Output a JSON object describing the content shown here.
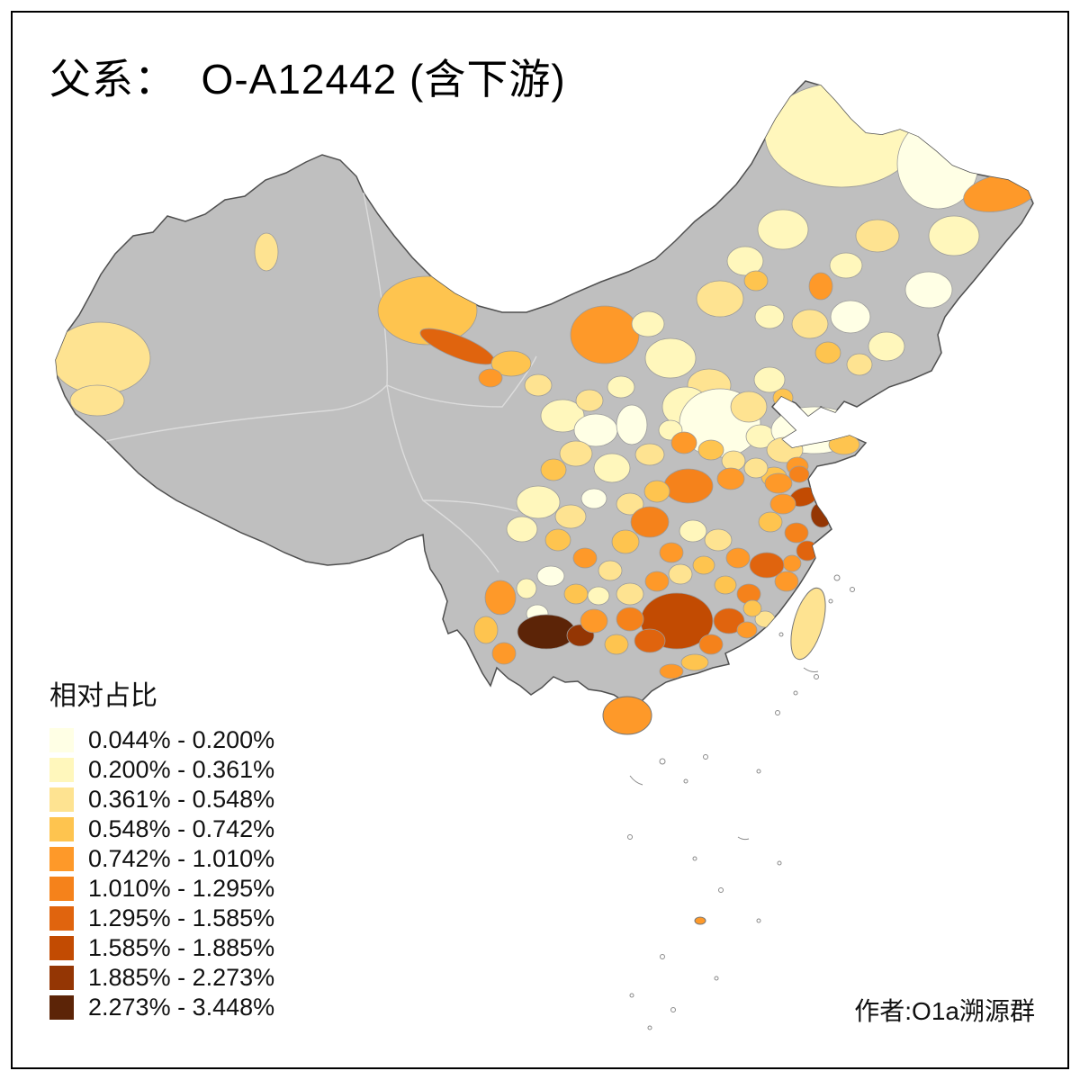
{
  "title": "父系：  O-A12442 (含下游)",
  "credit": "作者:O1a溯源群",
  "legend": {
    "title": "相对占比",
    "bins": [
      {
        "label": "0.044% - 0.200%",
        "color": "#FFFFE5"
      },
      {
        "label": "0.200% - 0.361%",
        "color": "#FFF7BC"
      },
      {
        "label": "0.361% - 0.548%",
        "color": "#FEE391"
      },
      {
        "label": "0.548% - 0.742%",
        "color": "#FEC44F"
      },
      {
        "label": "0.742% - 1.010%",
        "color": "#FE9929"
      },
      {
        "label": "1.010% - 1.295%",
        "color": "#F5821B"
      },
      {
        "label": "1.295% - 1.585%",
        "color": "#E0640E"
      },
      {
        "label": "1.585% - 1.885%",
        "color": "#C24B02"
      },
      {
        "label": "1.885% - 2.273%",
        "color": "#943604"
      },
      {
        "label": "2.273% - 3.448%",
        "color": "#5C2407"
      }
    ]
  },
  "map": {
    "nodata_color": "#BFBFBF",
    "outline_color": "#4F4F4F",
    "prefecture_border_color": "#9B9B9B",
    "sea_color": "#FFFFFF"
  }
}
